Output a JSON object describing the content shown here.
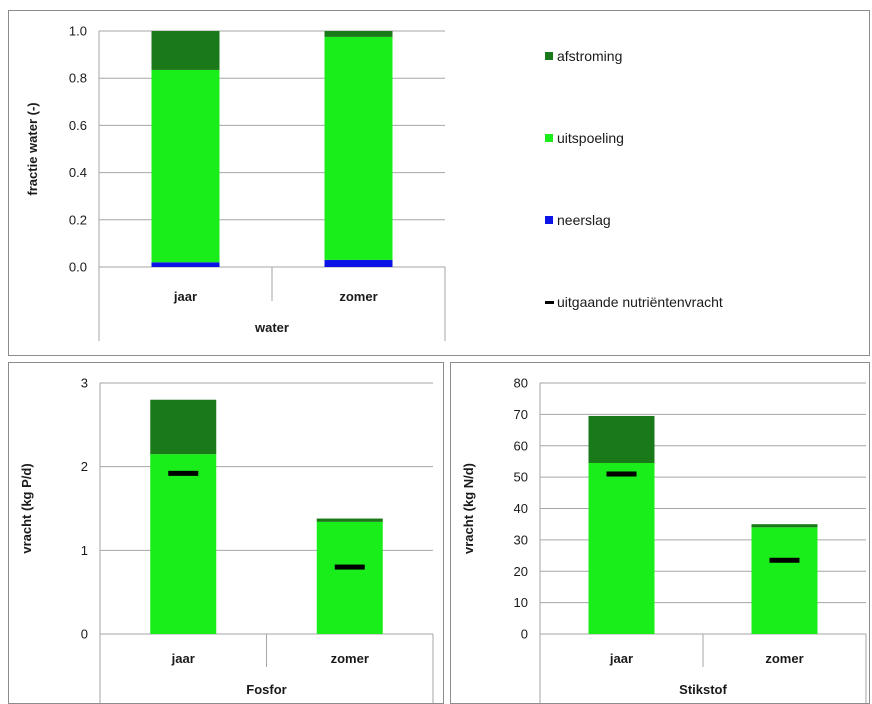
{
  "colors": {
    "afstroming": "#1a7a1a",
    "uitspoeling": "#1aee1a",
    "neerslag": "#0a14e6",
    "nutrientenvracht": "#000000",
    "grid": "#a6a6a6"
  },
  "legend": {
    "placement": "right",
    "items": [
      {
        "key": "afstroming",
        "label": "afstroming",
        "kind": "box"
      },
      {
        "key": "uitspoeling",
        "label": "uitspoeling",
        "kind": "box"
      },
      {
        "key": "neerslag",
        "label": "neerslag",
        "kind": "box"
      },
      {
        "key": "nutrientenvracht",
        "label": "uitgaande nutriëntenvracht",
        "kind": "dash"
      }
    ]
  },
  "chart_data": [
    {
      "id": "water",
      "type": "bar",
      "stacked": true,
      "categories": [
        "jaar",
        "zomer"
      ],
      "group_label": "water",
      "ylabel": "fractie water (-)",
      "ylim": [
        0,
        1.0
      ],
      "yticks": [
        "0.0",
        "0.2",
        "0.4",
        "0.6",
        "0.8",
        "1.0"
      ],
      "ytick_values": [
        0,
        0.2,
        0.4,
        0.6,
        0.8,
        1.0
      ],
      "grid": true,
      "series": [
        {
          "name": "neerslag",
          "color_key": "neerslag",
          "values": [
            0.02,
            0.03
          ]
        },
        {
          "name": "uitspoeling",
          "color_key": "uitspoeling",
          "values": [
            0.815,
            0.945
          ]
        },
        {
          "name": "afstroming",
          "color_key": "afstroming",
          "values": [
            0.165,
            0.025
          ]
        }
      ],
      "markers": []
    },
    {
      "id": "fosfor",
      "type": "bar",
      "stacked": true,
      "categories": [
        "jaar",
        "zomer"
      ],
      "group_label": "Fosfor",
      "ylabel": "vracht (kg P/d)",
      "ylim": [
        0,
        3
      ],
      "yticks": [
        "0",
        "1",
        "2",
        "3"
      ],
      "ytick_values": [
        0,
        1,
        2,
        3
      ],
      "grid": true,
      "series": [
        {
          "name": "uitspoeling",
          "color_key": "uitspoeling",
          "values": [
            2.15,
            1.34
          ]
        },
        {
          "name": "afstroming",
          "color_key": "afstroming",
          "values": [
            0.65,
            0.04
          ]
        }
      ],
      "markers": [
        {
          "name": "uitgaande nutriëntenvracht",
          "color_key": "nutrientenvracht",
          "values": [
            1.92,
            0.8
          ]
        }
      ]
    },
    {
      "id": "stikstof",
      "type": "bar",
      "stacked": true,
      "categories": [
        "jaar",
        "zomer"
      ],
      "group_label": "Stikstof",
      "ylabel": "vracht (kg N/d)",
      "ylim": [
        0,
        80
      ],
      "yticks": [
        "0",
        "10",
        "20",
        "30",
        "40",
        "50",
        "60",
        "70",
        "80"
      ],
      "ytick_values": [
        0,
        10,
        20,
        30,
        40,
        50,
        60,
        70,
        80
      ],
      "grid": true,
      "series": [
        {
          "name": "uitspoeling",
          "color_key": "uitspoeling",
          "values": [
            54.5,
            34
          ]
        },
        {
          "name": "afstroming",
          "color_key": "afstroming",
          "values": [
            15,
            1
          ]
        }
      ],
      "markers": [
        {
          "name": "uitgaande nutriëntenvracht",
          "color_key": "nutrientenvracht",
          "values": [
            51,
            23.5
          ]
        }
      ]
    }
  ]
}
